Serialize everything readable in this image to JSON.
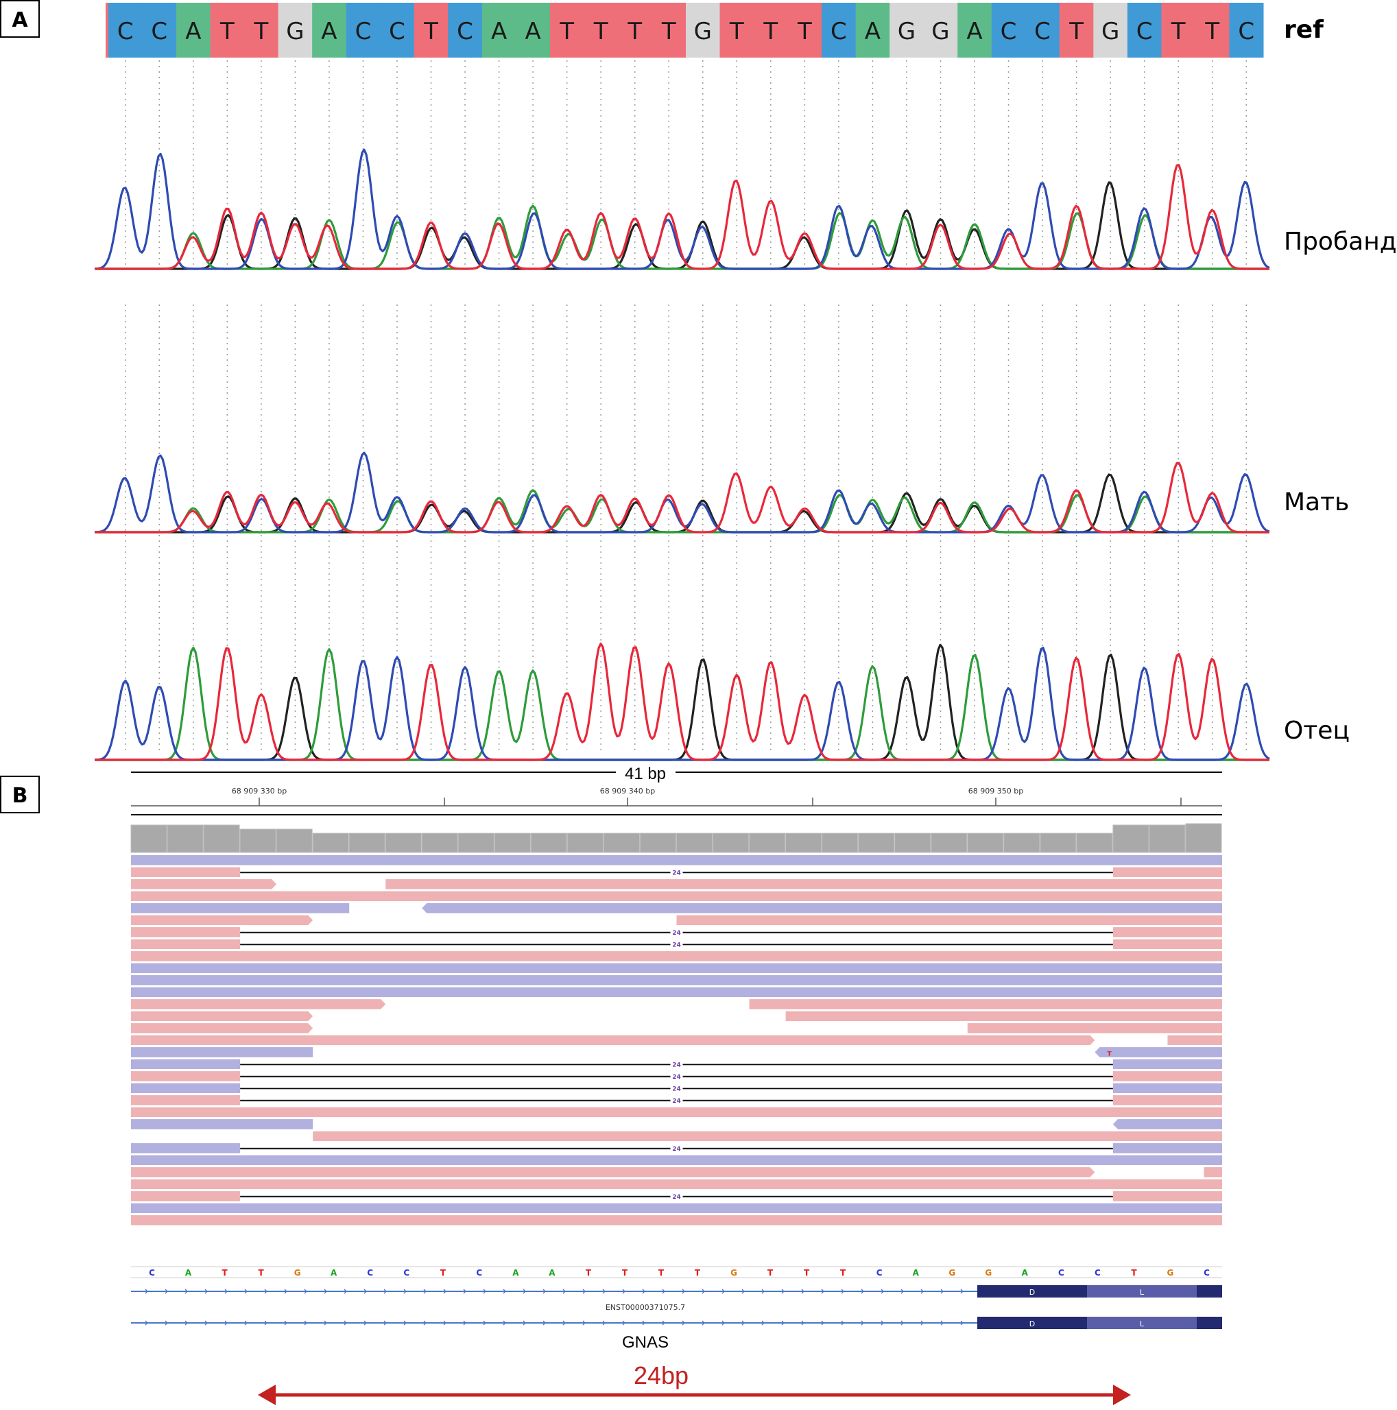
{
  "panelA": {
    "label": "A",
    "ref_label": "ref",
    "ref_sequence": [
      "C",
      "C",
      "A",
      "T",
      "T",
      "G",
      "A",
      "C",
      "C",
      "T",
      "C",
      "A",
      "A",
      "T",
      "T",
      "T",
      "T",
      "G",
      "T",
      "T",
      "T",
      "C",
      "A",
      "G",
      "G",
      "A",
      "C",
      "C",
      "T",
      "G",
      "C",
      "T",
      "T",
      "C"
    ],
    "base_colors": {
      "A": "#5dbb8a",
      "C": "#3f9ad6",
      "G": "#d7d7d7",
      "T": "#ef6f78"
    },
    "trace_colors": {
      "A": "#2e9c3a",
      "C": "#2f4bb4",
      "G": "#222222",
      "T": "#e8283a"
    },
    "samples": [
      {
        "name": "Пробанд",
        "heterozygous": true
      },
      {
        "name": "Мать",
        "heterozygous": true
      },
      {
        "name": "Отец",
        "heterozygous": false
      }
    ]
  },
  "panelB": {
    "label": "B",
    "window_label": "41 bp",
    "ticks": [
      "68 909 330 bp",
      "68 909 340 bp",
      "68 909 350 bp"
    ],
    "deletion_count_label": "24",
    "mismatch_base": "T",
    "ref_sequence": [
      "C",
      "A",
      "T",
      "T",
      "G",
      "A",
      "C",
      "C",
      "T",
      "C",
      "A",
      "A",
      "T",
      "T",
      "T",
      "T",
      "G",
      "T",
      "T",
      "T",
      "C",
      "A",
      "G",
      "G",
      "A",
      "C",
      "C",
      "T",
      "G",
      "C"
    ],
    "seq_colors": {
      "A": "#1aa321",
      "C": "#2d36d6",
      "G": "#d77b11",
      "T": "#e11b1b"
    },
    "read_colors": {
      "forward": "#efb2b4",
      "reverse": "#b1b0de"
    },
    "transcript": "ENST00000371075.7",
    "exon_labels": [
      "D",
      "L"
    ],
    "gene": "GNAS",
    "span_label": "24bp",
    "reads": [
      {
        "dir": "R",
        "segs": [
          [
            0,
            30
          ]
        ]
      },
      {
        "dir": "F",
        "segs": [
          [
            0,
            3
          ],
          [
            27,
            30
          ]
        ],
        "del": true
      },
      {
        "dir": "F",
        "segs": [
          [
            0,
            4
          ],
          [
            7,
            30
          ]
        ]
      },
      {
        "dir": "F",
        "segs": [
          [
            0,
            30
          ]
        ]
      },
      {
        "dir": "R",
        "segs": [
          [
            0,
            6
          ],
          [
            8,
            30
          ]
        ]
      },
      {
        "dir": "F",
        "segs": [
          [
            0,
            5
          ],
          [
            15,
            30
          ]
        ]
      },
      {
        "dir": "F",
        "segs": [
          [
            0,
            3
          ],
          [
            27,
            30
          ]
        ],
        "del": true
      },
      {
        "dir": "F",
        "segs": [
          [
            0,
            3
          ],
          [
            27,
            30
          ]
        ],
        "del": true
      },
      {
        "dir": "F",
        "segs": [
          [
            0,
            30
          ]
        ]
      },
      {
        "dir": "R",
        "segs": [
          [
            0,
            30
          ]
        ]
      },
      {
        "dir": "R",
        "segs": [
          [
            0,
            30
          ]
        ]
      },
      {
        "dir": "R",
        "segs": [
          [
            0,
            30
          ]
        ]
      },
      {
        "dir": "F",
        "segs": [
          [
            0,
            7
          ],
          [
            17,
            30
          ]
        ]
      },
      {
        "dir": "F",
        "segs": [
          [
            0,
            5
          ],
          [
            18,
            30
          ]
        ]
      },
      {
        "dir": "F",
        "segs": [
          [
            0,
            5
          ],
          [
            23,
            30
          ]
        ]
      },
      {
        "dir": "F",
        "segs": [
          [
            0,
            26.5
          ],
          [
            28.5,
            30
          ]
        ]
      },
      {
        "dir": "R",
        "segs": [
          [
            0,
            5
          ],
          [
            26.5,
            30
          ]
        ],
        "mismatch": true
      },
      {
        "dir": "R",
        "segs": [
          [
            0,
            3
          ],
          [
            27,
            30
          ]
        ],
        "del": true
      },
      {
        "dir": "F",
        "segs": [
          [
            0,
            3
          ],
          [
            27,
            30
          ]
        ],
        "del": true
      },
      {
        "dir": "R",
        "segs": [
          [
            0,
            3
          ],
          [
            27,
            30
          ]
        ],
        "del": true
      },
      {
        "dir": "F",
        "segs": [
          [
            0,
            3
          ],
          [
            27,
            30
          ]
        ],
        "del": true
      },
      {
        "dir": "F",
        "segs": [
          [
            0,
            30
          ]
        ]
      },
      {
        "dir": "R",
        "segs": [
          [
            0,
            5
          ],
          [
            27,
            30
          ]
        ]
      },
      {
        "dir": "F",
        "segs": [
          [
            5,
            30
          ]
        ]
      },
      {
        "dir": "R",
        "segs": [
          [
            0,
            3
          ],
          [
            27,
            30
          ]
        ],
        "del": true
      },
      {
        "dir": "R",
        "segs": [
          [
            0,
            30
          ]
        ]
      },
      {
        "dir": "F",
        "segs": [
          [
            0,
            26.5
          ],
          [
            29.5,
            30
          ]
        ]
      },
      {
        "dir": "F",
        "segs": [
          [
            0,
            30
          ]
        ]
      },
      {
        "dir": "F",
        "segs": [
          [
            0,
            3
          ],
          [
            27,
            30
          ]
        ],
        "del": true
      },
      {
        "dir": "R",
        "segs": [
          [
            0,
            30
          ]
        ]
      },
      {
        "dir": "F",
        "segs": [
          [
            0,
            30
          ]
        ]
      }
    ]
  }
}
